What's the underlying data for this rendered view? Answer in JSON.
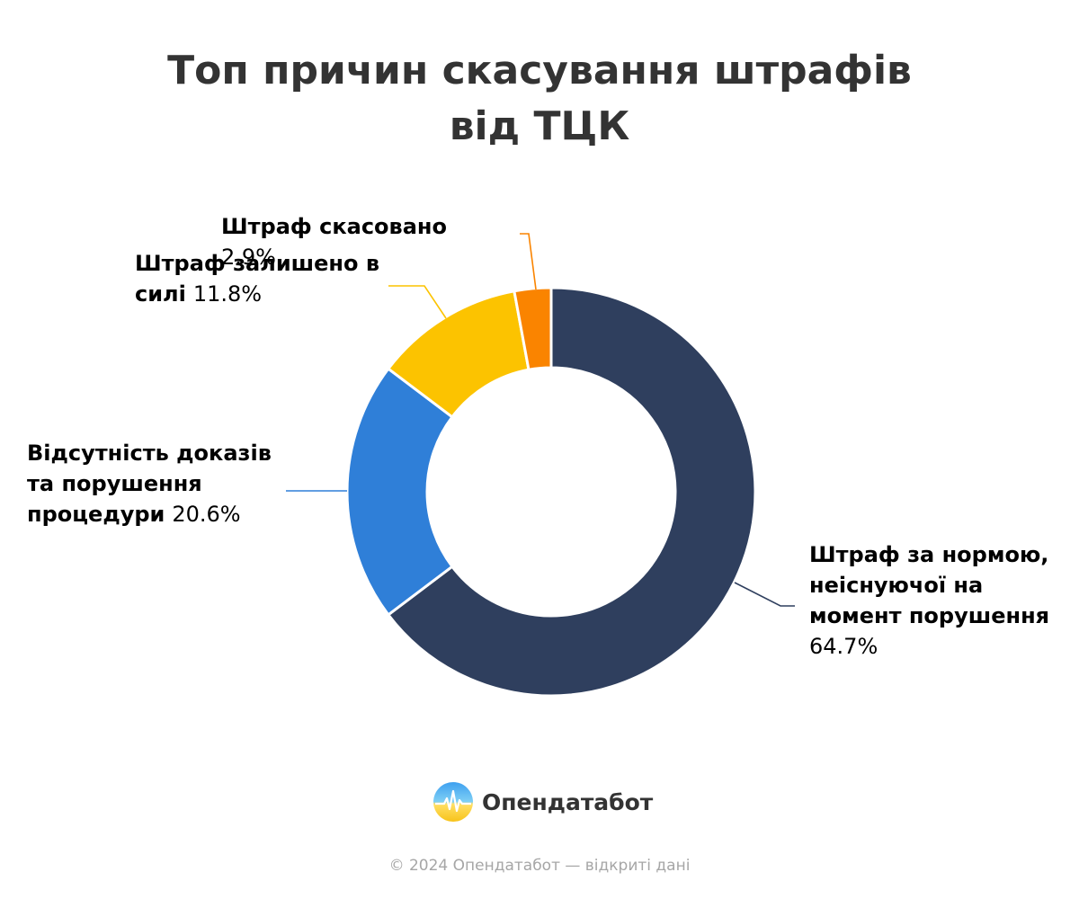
{
  "chart_data": {
    "type": "pie",
    "subtype": "donut",
    "title_lines": [
      "Топ причин скасування штрафів",
      "від ТЦК"
    ],
    "unit": "%",
    "slices": [
      {
        "label": "Штраф за нормою, неіснуючої на момент порушення",
        "label_lines": [
          "Штраф за нормою,",
          "неіснуючої на",
          "момент порушення"
        ],
        "value": 64.7,
        "value_text": "64.7%",
        "color": "#2f3f5e"
      },
      {
        "label": "Відсутність доказів та порушення процедури",
        "label_lines": [
          "Відсутність доказів",
          "та порушення",
          "процедури"
        ],
        "value": 20.6,
        "value_text": "20.6%",
        "color": "#2f7fd8"
      },
      {
        "label": "Штраф залишено в силі",
        "label_lines": [
          "Штраф залишено в",
          "силі"
        ],
        "value": 11.8,
        "value_text": "11.8%",
        "color": "#fcc300"
      },
      {
        "label": "Штраф скасовано",
        "label_lines": [
          "Штраф скасовано"
        ],
        "value": 2.9,
        "value_text": "2.9%",
        "color": "#fa8400"
      }
    ],
    "start_angle_deg": 0,
    "direction": "clockwise",
    "legend": "none",
    "data_labels": "outside-with-leader-lines"
  },
  "footer": {
    "logo_text": "Опендатабот",
    "copyright": "© 2024 Опендатабот — відкриті дані"
  }
}
